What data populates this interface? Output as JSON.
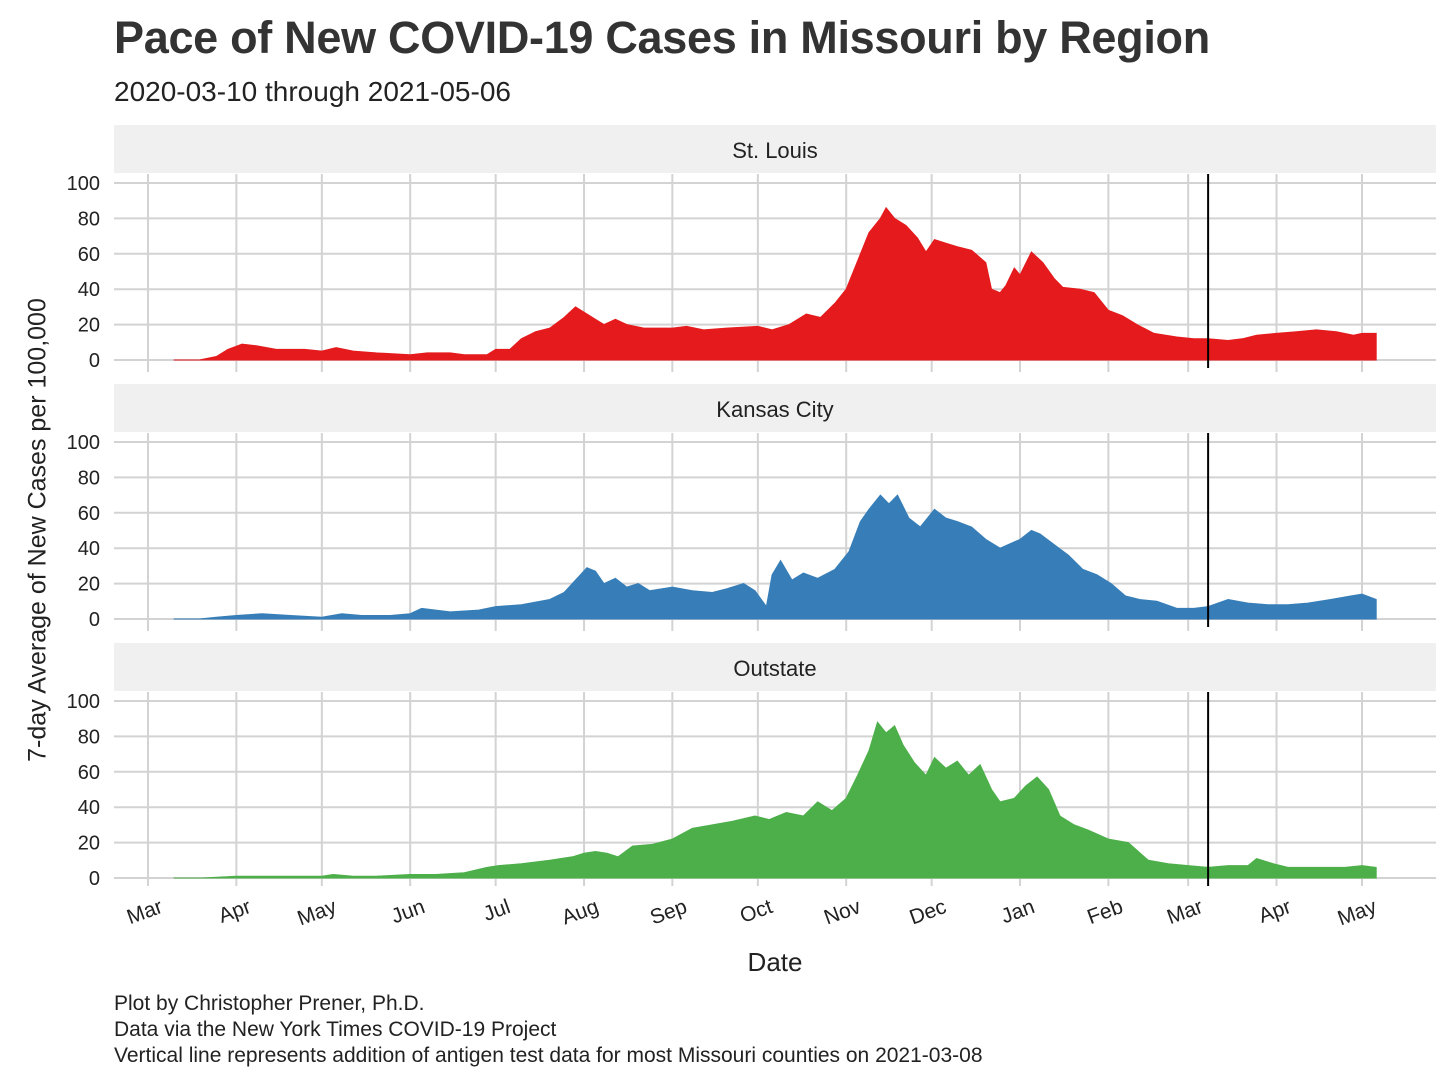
{
  "title": "Pace of New COVID-19 Cases in Missouri by Region",
  "subtitle": "2020-03-10 through 2021-05-06",
  "caption": [
    "Plot by Christopher Prener, Ph.D.",
    "Data via the New York Times COVID-19 Project",
    "Vertical line represents addition of antigen test data for most Missouri counties on 2021-03-08"
  ],
  "chart_data": {
    "type": "area",
    "title": "Pace of New COVID-19 Cases in Missouri by Region",
    "subtitle": "2020-03-10 through 2021-05-06",
    "xlabel": "Date",
    "ylabel": "7-day Average of New Cases per 100,000",
    "ylim": [
      0,
      100
    ],
    "y_ticks": [
      0,
      20,
      40,
      60,
      80,
      100
    ],
    "x_ticks": [
      {
        "date": "2020-03-01",
        "label": "Mar"
      },
      {
        "date": "2020-04-01",
        "label": "Apr"
      },
      {
        "date": "2020-05-01",
        "label": "May"
      },
      {
        "date": "2020-06-01",
        "label": "Jun"
      },
      {
        "date": "2020-07-01",
        "label": "Jul"
      },
      {
        "date": "2020-08-01",
        "label": "Aug"
      },
      {
        "date": "2020-09-01",
        "label": "Sep"
      },
      {
        "date": "2020-10-01",
        "label": "Oct"
      },
      {
        "date": "2020-11-01",
        "label": "Nov"
      },
      {
        "date": "2020-12-01",
        "label": "Dec"
      },
      {
        "date": "2021-01-01",
        "label": "Jan"
      },
      {
        "date": "2021-02-01",
        "label": "Feb"
      },
      {
        "date": "2021-03-01",
        "label": "Mar"
      },
      {
        "date": "2021-04-01",
        "label": "Apr"
      },
      {
        "date": "2021-05-01",
        "label": "May"
      }
    ],
    "vline_date": "2021-03-08",
    "grid": true,
    "legend": "none",
    "panels": [
      {
        "name": "St. Louis",
        "color": "#e41a1c",
        "points": [
          [
            "2020-03-10",
            0
          ],
          [
            "2020-03-19",
            0
          ],
          [
            "2020-03-25",
            2
          ],
          [
            "2020-03-29",
            6
          ],
          [
            "2020-04-03",
            9
          ],
          [
            "2020-04-08",
            8
          ],
          [
            "2020-04-15",
            6
          ],
          [
            "2020-04-25",
            6
          ],
          [
            "2020-05-01",
            5
          ],
          [
            "2020-05-06",
            7
          ],
          [
            "2020-05-12",
            5
          ],
          [
            "2020-05-20",
            4
          ],
          [
            "2020-06-01",
            3
          ],
          [
            "2020-06-07",
            4
          ],
          [
            "2020-06-15",
            4
          ],
          [
            "2020-06-20",
            3
          ],
          [
            "2020-06-28",
            3
          ],
          [
            "2020-07-01",
            6
          ],
          [
            "2020-07-06",
            6
          ],
          [
            "2020-07-10",
            12
          ],
          [
            "2020-07-15",
            16
          ],
          [
            "2020-07-20",
            18
          ],
          [
            "2020-07-25",
            24
          ],
          [
            "2020-07-29",
            30
          ],
          [
            "2020-08-01",
            27
          ],
          [
            "2020-08-05",
            23
          ],
          [
            "2020-08-08",
            20
          ],
          [
            "2020-08-12",
            23
          ],
          [
            "2020-08-16",
            20
          ],
          [
            "2020-08-22",
            18
          ],
          [
            "2020-09-01",
            18
          ],
          [
            "2020-09-06",
            19
          ],
          [
            "2020-09-12",
            17
          ],
          [
            "2020-09-20",
            18
          ],
          [
            "2020-10-01",
            19
          ],
          [
            "2020-10-06",
            17
          ],
          [
            "2020-10-12",
            20
          ],
          [
            "2020-10-18",
            26
          ],
          [
            "2020-10-23",
            24
          ],
          [
            "2020-10-28",
            32
          ],
          [
            "2020-11-01",
            40
          ],
          [
            "2020-11-05",
            56
          ],
          [
            "2020-11-09",
            72
          ],
          [
            "2020-11-13",
            80
          ],
          [
            "2020-11-15",
            86
          ],
          [
            "2020-11-18",
            80
          ],
          [
            "2020-11-22",
            76
          ],
          [
            "2020-11-26",
            69
          ],
          [
            "2020-11-29",
            61
          ],
          [
            "2020-12-02",
            68
          ],
          [
            "2020-12-06",
            66
          ],
          [
            "2020-12-10",
            64
          ],
          [
            "2020-12-15",
            62
          ],
          [
            "2020-12-20",
            55
          ],
          [
            "2020-12-22",
            40
          ],
          [
            "2020-12-25",
            38
          ],
          [
            "2020-12-27",
            42
          ],
          [
            "2020-12-30",
            52
          ],
          [
            "2021-01-01",
            48
          ],
          [
            "2021-01-05",
            61
          ],
          [
            "2021-01-09",
            55
          ],
          [
            "2021-01-13",
            46
          ],
          [
            "2021-01-16",
            41
          ],
          [
            "2021-01-22",
            40
          ],
          [
            "2021-01-27",
            38
          ],
          [
            "2021-02-01",
            28
          ],
          [
            "2021-02-06",
            25
          ],
          [
            "2021-02-11",
            20
          ],
          [
            "2021-02-17",
            15
          ],
          [
            "2021-02-25",
            13
          ],
          [
            "2021-03-03",
            12
          ],
          [
            "2021-03-08",
            12
          ],
          [
            "2021-03-15",
            11
          ],
          [
            "2021-03-20",
            12
          ],
          [
            "2021-03-25",
            14
          ],
          [
            "2021-04-01",
            15
          ],
          [
            "2021-04-08",
            16
          ],
          [
            "2021-04-15",
            17
          ],
          [
            "2021-04-22",
            16
          ],
          [
            "2021-04-28",
            14
          ],
          [
            "2021-05-01",
            15
          ],
          [
            "2021-05-06",
            15
          ]
        ]
      },
      {
        "name": "Kansas City",
        "color": "#377eb8",
        "points": [
          [
            "2020-03-10",
            0
          ],
          [
            "2020-03-19",
            0
          ],
          [
            "2020-03-25",
            1
          ],
          [
            "2020-04-01",
            2
          ],
          [
            "2020-04-10",
            3
          ],
          [
            "2020-04-20",
            2
          ],
          [
            "2020-05-01",
            1
          ],
          [
            "2020-05-08",
            3
          ],
          [
            "2020-05-15",
            2
          ],
          [
            "2020-05-25",
            2
          ],
          [
            "2020-06-01",
            3
          ],
          [
            "2020-06-05",
            6
          ],
          [
            "2020-06-10",
            5
          ],
          [
            "2020-06-15",
            4
          ],
          [
            "2020-06-25",
            5
          ],
          [
            "2020-07-01",
            7
          ],
          [
            "2020-07-10",
            8
          ],
          [
            "2020-07-20",
            11
          ],
          [
            "2020-07-25",
            15
          ],
          [
            "2020-07-29",
            22
          ],
          [
            "2020-08-02",
            29
          ],
          [
            "2020-08-05",
            27
          ],
          [
            "2020-08-08",
            20
          ],
          [
            "2020-08-12",
            23
          ],
          [
            "2020-08-16",
            18
          ],
          [
            "2020-08-20",
            20
          ],
          [
            "2020-08-24",
            16
          ],
          [
            "2020-09-01",
            18
          ],
          [
            "2020-09-08",
            16
          ],
          [
            "2020-09-15",
            15
          ],
          [
            "2020-09-20",
            17
          ],
          [
            "2020-09-26",
            20
          ],
          [
            "2020-09-30",
            16
          ],
          [
            "2020-10-04",
            7
          ],
          [
            "2020-10-06",
            25
          ],
          [
            "2020-10-09",
            33
          ],
          [
            "2020-10-13",
            22
          ],
          [
            "2020-10-17",
            26
          ],
          [
            "2020-10-22",
            23
          ],
          [
            "2020-10-28",
            28
          ],
          [
            "2020-11-02",
            38
          ],
          [
            "2020-11-06",
            55
          ],
          [
            "2020-11-09",
            62
          ],
          [
            "2020-11-13",
            70
          ],
          [
            "2020-11-16",
            65
          ],
          [
            "2020-11-19",
            70
          ],
          [
            "2020-11-23",
            57
          ],
          [
            "2020-11-27",
            52
          ],
          [
            "2020-12-02",
            62
          ],
          [
            "2020-12-06",
            57
          ],
          [
            "2020-12-10",
            55
          ],
          [
            "2020-12-15",
            52
          ],
          [
            "2020-12-20",
            45
          ],
          [
            "2020-12-25",
            40
          ],
          [
            "2021-01-01",
            45
          ],
          [
            "2021-01-05",
            50
          ],
          [
            "2021-01-08",
            48
          ],
          [
            "2021-01-13",
            42
          ],
          [
            "2021-01-18",
            36
          ],
          [
            "2021-01-23",
            28
          ],
          [
            "2021-01-28",
            25
          ],
          [
            "2021-02-02",
            20
          ],
          [
            "2021-02-07",
            13
          ],
          [
            "2021-02-12",
            11
          ],
          [
            "2021-02-18",
            10
          ],
          [
            "2021-02-25",
            6
          ],
          [
            "2021-03-03",
            6
          ],
          [
            "2021-03-08",
            7
          ],
          [
            "2021-03-15",
            11
          ],
          [
            "2021-03-22",
            9
          ],
          [
            "2021-03-29",
            8
          ],
          [
            "2021-04-05",
            8
          ],
          [
            "2021-04-12",
            9
          ],
          [
            "2021-04-20",
            11
          ],
          [
            "2021-04-27",
            13
          ],
          [
            "2021-05-01",
            14
          ],
          [
            "2021-05-06",
            11
          ]
        ]
      },
      {
        "name": "Outstate",
        "color": "#4daf4a",
        "points": [
          [
            "2020-03-10",
            0
          ],
          [
            "2020-03-20",
            0
          ],
          [
            "2020-04-01",
            1
          ],
          [
            "2020-04-15",
            1
          ],
          [
            "2020-05-01",
            1
          ],
          [
            "2020-05-05",
            2
          ],
          [
            "2020-05-12",
            1
          ],
          [
            "2020-05-20",
            1
          ],
          [
            "2020-06-01",
            2
          ],
          [
            "2020-06-10",
            2
          ],
          [
            "2020-06-20",
            3
          ],
          [
            "2020-06-28",
            6
          ],
          [
            "2020-07-02",
            7
          ],
          [
            "2020-07-10",
            8
          ],
          [
            "2020-07-20",
            10
          ],
          [
            "2020-07-28",
            12
          ],
          [
            "2020-08-01",
            14
          ],
          [
            "2020-08-05",
            15
          ],
          [
            "2020-08-09",
            14
          ],
          [
            "2020-08-13",
            12
          ],
          [
            "2020-08-18",
            18
          ],
          [
            "2020-08-25",
            19
          ],
          [
            "2020-09-01",
            22
          ],
          [
            "2020-09-08",
            28
          ],
          [
            "2020-09-15",
            30
          ],
          [
            "2020-09-22",
            32
          ],
          [
            "2020-09-30",
            35
          ],
          [
            "2020-10-05",
            33
          ],
          [
            "2020-10-11",
            37
          ],
          [
            "2020-10-17",
            35
          ],
          [
            "2020-10-22",
            43
          ],
          [
            "2020-10-27",
            38
          ],
          [
            "2020-11-01",
            45
          ],
          [
            "2020-11-05",
            58
          ],
          [
            "2020-11-09",
            72
          ],
          [
            "2020-11-12",
            88
          ],
          [
            "2020-11-15",
            82
          ],
          [
            "2020-11-18",
            86
          ],
          [
            "2020-11-21",
            75
          ],
          [
            "2020-11-25",
            65
          ],
          [
            "2020-11-29",
            58
          ],
          [
            "2020-12-02",
            68
          ],
          [
            "2020-12-06",
            62
          ],
          [
            "2020-12-10",
            66
          ],
          [
            "2020-12-14",
            58
          ],
          [
            "2020-12-18",
            64
          ],
          [
            "2020-12-22",
            50
          ],
          [
            "2020-12-25",
            43
          ],
          [
            "2020-12-30",
            45
          ],
          [
            "2021-01-03",
            52
          ],
          [
            "2021-01-07",
            57
          ],
          [
            "2021-01-11",
            50
          ],
          [
            "2021-01-15",
            35
          ],
          [
            "2021-01-20",
            30
          ],
          [
            "2021-01-25",
            27
          ],
          [
            "2021-02-01",
            22
          ],
          [
            "2021-02-08",
            20
          ],
          [
            "2021-02-15",
            10
          ],
          [
            "2021-02-22",
            8
          ],
          [
            "2021-03-01",
            7
          ],
          [
            "2021-03-08",
            6
          ],
          [
            "2021-03-15",
            7
          ],
          [
            "2021-03-22",
            7
          ],
          [
            "2021-03-25",
            11
          ],
          [
            "2021-03-31",
            8
          ],
          [
            "2021-04-05",
            6
          ],
          [
            "2021-04-15",
            6
          ],
          [
            "2021-04-25",
            6
          ],
          [
            "2021-05-01",
            7
          ],
          [
            "2021-05-06",
            6
          ]
        ]
      }
    ]
  }
}
